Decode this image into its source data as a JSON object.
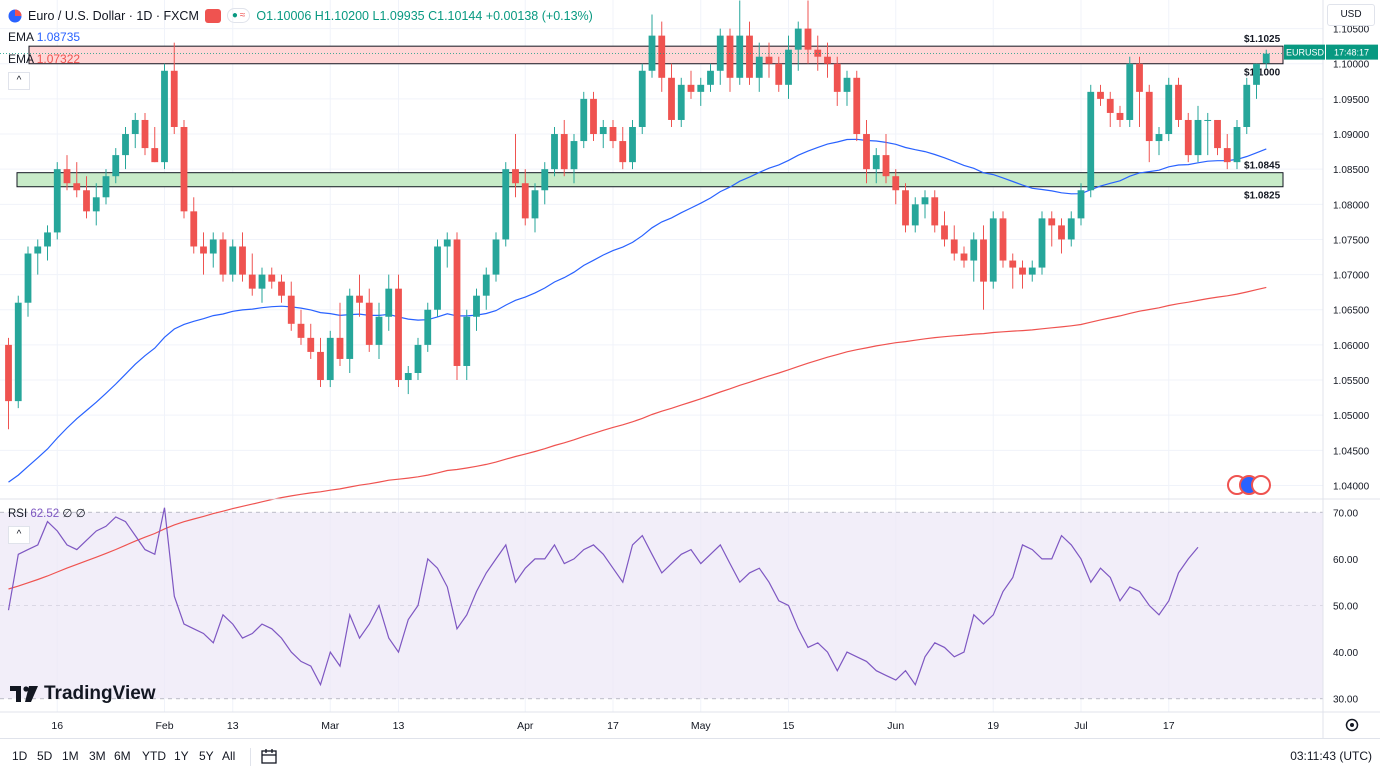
{
  "header": {
    "symbol": "Euro / U.S. Dollar · 1D · FXCM",
    "ohlc": "O1.10006 H1.10200 L1.09935 C1.10144 +0.00138 (+0.13%)"
  },
  "indicators": {
    "ema1": {
      "label": "EMA",
      "value": "1.08735"
    },
    "ema2": {
      "label": "EMA",
      "value": "1.07322"
    },
    "rsi": {
      "label": "RSI",
      "value": "62.52",
      "extra": "∅ ∅"
    }
  },
  "currency_button": "USD",
  "brand": "TradingView",
  "timeframes": [
    "1D",
    "5D",
    "1M",
    "3M",
    "6M",
    "YTD",
    "1Y",
    "5Y",
    "All"
  ],
  "clock": "03:11:43 (UTC)",
  "colors": {
    "up": "#26a69a",
    "down": "#ef5350",
    "ema_fast": "#2962ff",
    "ema_slow": "#ef5350",
    "rsi_line": "#7e57c2",
    "rsi_band": "#ede7f6",
    "resistance_zone": "#ffd6d6",
    "support_zone": "#c8ebc8",
    "current_price": "#089981"
  },
  "icons": [
    "euro-us-flag-icon",
    "calendar-range-icon",
    "settings-gear-icon",
    "economic-events-icon"
  ],
  "chart_data": [
    {
      "type": "candlestick",
      "symbol_label": "EURUSD",
      "current_price": "1.10144",
      "countdown": "17:48:17",
      "y_ticks": [
        "1.10500",
        "1.10000",
        "1.09500",
        "1.09000",
        "1.08500",
        "1.08000",
        "1.07500",
        "1.07000",
        "1.06500",
        "1.06000",
        "1.05500",
        "1.05000",
        "1.04500",
        "1.04000"
      ],
      "y_tick_values": [
        1.105,
        1.1,
        1.095,
        1.09,
        1.085,
        1.08,
        1.075,
        1.07,
        1.065,
        1.06,
        1.055,
        1.05,
        1.045,
        1.04
      ],
      "ylim": [
        1.0385,
        1.1085
      ],
      "x_ticks": [
        {
          "label": "16",
          "i": 5
        },
        {
          "label": "Feb",
          "i": 16
        },
        {
          "label": "13",
          "i": 23
        },
        {
          "label": "Mar",
          "i": 33
        },
        {
          "label": "13",
          "i": 40
        },
        {
          "label": "Apr",
          "i": 53
        },
        {
          "label": "17",
          "i": 62
        },
        {
          "label": "May",
          "i": 71
        },
        {
          "label": "15",
          "i": 80
        },
        {
          "label": "Jun",
          "i": 91
        },
        {
          "label": "19",
          "i": 101
        },
        {
          "label": "Jul",
          "i": 110
        },
        {
          "label": "17",
          "i": 119
        }
      ],
      "zones": [
        {
          "name": "resistance",
          "low": 1.1,
          "high": 1.1025,
          "low_label": "$1.1000",
          "high_label": "$1.1025"
        },
        {
          "name": "support",
          "low": 1.0825,
          "high": 1.0845,
          "low_label": "$1.0825",
          "high_label": "$1.0845"
        }
      ],
      "candles": [
        [
          1.06,
          1.061,
          1.048,
          1.052
        ],
        [
          1.052,
          1.067,
          1.051,
          1.066
        ],
        [
          1.066,
          1.074,
          1.064,
          1.073
        ],
        [
          1.073,
          1.075,
          1.07,
          1.074
        ],
        [
          1.074,
          1.077,
          1.072,
          1.076
        ],
        [
          1.076,
          1.086,
          1.075,
          1.085
        ],
        [
          1.085,
          1.087,
          1.082,
          1.083
        ],
        [
          1.083,
          1.086,
          1.081,
          1.082
        ],
        [
          1.082,
          1.084,
          1.078,
          1.079
        ],
        [
          1.079,
          1.083,
          1.077,
          1.081
        ],
        [
          1.081,
          1.085,
          1.08,
          1.084
        ],
        [
          1.084,
          1.088,
          1.083,
          1.087
        ],
        [
          1.087,
          1.091,
          1.085,
          1.09
        ],
        [
          1.09,
          1.093,
          1.088,
          1.092
        ],
        [
          1.092,
          1.093,
          1.087,
          1.088
        ],
        [
          1.088,
          1.091,
          1.086,
          1.086
        ],
        [
          1.086,
          1.1,
          1.085,
          1.099
        ],
        [
          1.099,
          1.103,
          1.09,
          1.091
        ],
        [
          1.091,
          1.092,
          1.078,
          1.079
        ],
        [
          1.079,
          1.081,
          1.073,
          1.074
        ],
        [
          1.074,
          1.076,
          1.07,
          1.073
        ],
        [
          1.073,
          1.076,
          1.071,
          1.075
        ],
        [
          1.075,
          1.076,
          1.069,
          1.07
        ],
        [
          1.07,
          1.075,
          1.069,
          1.074
        ],
        [
          1.074,
          1.076,
          1.069,
          1.07
        ],
        [
          1.07,
          1.073,
          1.067,
          1.068
        ],
        [
          1.068,
          1.071,
          1.066,
          1.07
        ],
        [
          1.07,
          1.071,
          1.068,
          1.069
        ],
        [
          1.069,
          1.07,
          1.066,
          1.067
        ],
        [
          1.067,
          1.069,
          1.062,
          1.063
        ],
        [
          1.063,
          1.065,
          1.06,
          1.061
        ],
        [
          1.061,
          1.063,
          1.058,
          1.059
        ],
        [
          1.059,
          1.061,
          1.054,
          1.055
        ],
        [
          1.055,
          1.062,
          1.054,
          1.061
        ],
        [
          1.061,
          1.066,
          1.057,
          1.058
        ],
        [
          1.058,
          1.068,
          1.056,
          1.067
        ],
        [
          1.067,
          1.07,
          1.064,
          1.066
        ],
        [
          1.066,
          1.068,
          1.059,
          1.06
        ],
        [
          1.06,
          1.066,
          1.058,
          1.064
        ],
        [
          1.064,
          1.07,
          1.062,
          1.068
        ],
        [
          1.068,
          1.07,
          1.054,
          1.055
        ],
        [
          1.055,
          1.057,
          1.053,
          1.056
        ],
        [
          1.056,
          1.061,
          1.055,
          1.06
        ],
        [
          1.06,
          1.066,
          1.059,
          1.065
        ],
        [
          1.065,
          1.075,
          1.064,
          1.074
        ],
        [
          1.074,
          1.076,
          1.071,
          1.075
        ],
        [
          1.075,
          1.076,
          1.055,
          1.057
        ],
        [
          1.057,
          1.065,
          1.055,
          1.064
        ],
        [
          1.064,
          1.068,
          1.062,
          1.067
        ],
        [
          1.067,
          1.071,
          1.065,
          1.07
        ],
        [
          1.07,
          1.076,
          1.069,
          1.075
        ],
        [
          1.075,
          1.086,
          1.074,
          1.085
        ],
        [
          1.085,
          1.09,
          1.081,
          1.083
        ],
        [
          1.083,
          1.085,
          1.077,
          1.078
        ],
        [
          1.078,
          1.083,
          1.076,
          1.082
        ],
        [
          1.082,
          1.086,
          1.08,
          1.085
        ],
        [
          1.085,
          1.091,
          1.084,
          1.09
        ],
        [
          1.09,
          1.092,
          1.084,
          1.085
        ],
        [
          1.085,
          1.09,
          1.083,
          1.089
        ],
        [
          1.089,
          1.096,
          1.088,
          1.095
        ],
        [
          1.095,
          1.096,
          1.089,
          1.09
        ],
        [
          1.09,
          1.092,
          1.088,
          1.091
        ],
        [
          1.091,
          1.092,
          1.088,
          1.089
        ],
        [
          1.089,
          1.091,
          1.085,
          1.086
        ],
        [
          1.086,
          1.092,
          1.085,
          1.091
        ],
        [
          1.091,
          1.1,
          1.09,
          1.099
        ],
        [
          1.099,
          1.107,
          1.098,
          1.104
        ],
        [
          1.104,
          1.106,
          1.096,
          1.098
        ],
        [
          1.098,
          1.1,
          1.091,
          1.092
        ],
        [
          1.092,
          1.098,
          1.091,
          1.097
        ],
        [
          1.097,
          1.099,
          1.095,
          1.096
        ],
        [
          1.096,
          1.098,
          1.094,
          1.097
        ],
        [
          1.097,
          1.1,
          1.096,
          1.099
        ],
        [
          1.099,
          1.105,
          1.097,
          1.104
        ],
        [
          1.104,
          1.105,
          1.096,
          1.098
        ],
        [
          1.098,
          1.109,
          1.097,
          1.104
        ],
        [
          1.104,
          1.106,
          1.097,
          1.098
        ],
        [
          1.098,
          1.103,
          1.096,
          1.101
        ],
        [
          1.101,
          1.103,
          1.098,
          1.1
        ],
        [
          1.1,
          1.101,
          1.096,
          1.097
        ],
        [
          1.097,
          1.104,
          1.095,
          1.102
        ],
        [
          1.102,
          1.106,
          1.099,
          1.105
        ],
        [
          1.105,
          1.109,
          1.1,
          1.102
        ],
        [
          1.102,
          1.104,
          1.099,
          1.101
        ],
        [
          1.101,
          1.103,
          1.098,
          1.1
        ],
        [
          1.1,
          1.101,
          1.094,
          1.096
        ],
        [
          1.096,
          1.099,
          1.094,
          1.098
        ],
        [
          1.098,
          1.099,
          1.089,
          1.09
        ],
        [
          1.09,
          1.092,
          1.083,
          1.085
        ],
        [
          1.085,
          1.088,
          1.083,
          1.087
        ],
        [
          1.087,
          1.09,
          1.083,
          1.084
        ],
        [
          1.084,
          1.085,
          1.08,
          1.082
        ],
        [
          1.082,
          1.083,
          1.076,
          1.077
        ],
        [
          1.077,
          1.081,
          1.076,
          1.08
        ],
        [
          1.08,
          1.082,
          1.078,
          1.081
        ],
        [
          1.081,
          1.082,
          1.076,
          1.077
        ],
        [
          1.077,
          1.079,
          1.074,
          1.075
        ],
        [
          1.075,
          1.077,
          1.072,
          1.073
        ],
        [
          1.073,
          1.074,
          1.071,
          1.072
        ],
        [
          1.072,
          1.076,
          1.069,
          1.075
        ],
        [
          1.075,
          1.077,
          1.065,
          1.069
        ],
        [
          1.069,
          1.079,
          1.068,
          1.078
        ],
        [
          1.078,
          1.079,
          1.071,
          1.072
        ],
        [
          1.072,
          1.073,
          1.068,
          1.071
        ],
        [
          1.071,
          1.072,
          1.068,
          1.07
        ],
        [
          1.07,
          1.072,
          1.069,
          1.071
        ],
        [
          1.071,
          1.079,
          1.07,
          1.078
        ],
        [
          1.078,
          1.079,
          1.074,
          1.077
        ],
        [
          1.077,
          1.078,
          1.073,
          1.075
        ],
        [
          1.075,
          1.079,
          1.074,
          1.078
        ],
        [
          1.078,
          1.083,
          1.077,
          1.082
        ],
        [
          1.082,
          1.097,
          1.081,
          1.096
        ],
        [
          1.096,
          1.097,
          1.094,
          1.095
        ],
        [
          1.095,
          1.096,
          1.091,
          1.093
        ],
        [
          1.093,
          1.094,
          1.091,
          1.092
        ],
        [
          1.092,
          1.101,
          1.091,
          1.1
        ],
        [
          1.1,
          1.101,
          1.091,
          1.096
        ],
        [
          1.096,
          1.097,
          1.086,
          1.089
        ],
        [
          1.089,
          1.091,
          1.087,
          1.09
        ],
        [
          1.09,
          1.098,
          1.089,
          1.097
        ],
        [
          1.097,
          1.098,
          1.091,
          1.092
        ],
        [
          1.092,
          1.093,
          1.086,
          1.087
        ],
        [
          1.087,
          1.094,
          1.086,
          1.092
        ],
        [
          1.092,
          1.093,
          1.087,
          1.092
        ],
        [
          1.092,
          1.092,
          1.087,
          1.088
        ],
        [
          1.088,
          1.09,
          1.085,
          1.086
        ],
        [
          1.086,
          1.092,
          1.085,
          1.091
        ],
        [
          1.091,
          1.098,
          1.09,
          1.097
        ],
        [
          1.097,
          1.1,
          1.095,
          1.1
        ],
        [
          1.10006,
          1.102,
          1.09935,
          1.10144
        ]
      ]
    },
    {
      "type": "line",
      "name": "RSI",
      "y_ticks": [
        "70.00",
        "60.00",
        "50.00",
        "40.00",
        "30.00"
      ],
      "y_tick_values": [
        70,
        60,
        50,
        40,
        30
      ],
      "ylim": [
        28,
        72
      ],
      "band": [
        30,
        70
      ],
      "midline": 50,
      "values": [
        49,
        61,
        62,
        63,
        68,
        66,
        63,
        62,
        64,
        66,
        67,
        69,
        68,
        65,
        62,
        61,
        71,
        52,
        46,
        45,
        44,
        42,
        48,
        46,
        43,
        44,
        46,
        45,
        43,
        40,
        38,
        37,
        33,
        40,
        37,
        48,
        43,
        46,
        50,
        43,
        40,
        47,
        50,
        60,
        58,
        54,
        45,
        48,
        53,
        57,
        60,
        63,
        55,
        58,
        60,
        60,
        63,
        59,
        60,
        62,
        63,
        61,
        58,
        55,
        63,
        65,
        61,
        57,
        59,
        61,
        62,
        59,
        61,
        63,
        59,
        55,
        57,
        58,
        55,
        51,
        50,
        45,
        41,
        42,
        40,
        36,
        40,
        39,
        38,
        36,
        35,
        34,
        36,
        33,
        39,
        42,
        41,
        39,
        40,
        48,
        46,
        48,
        53,
        56,
        63,
        62,
        60,
        60,
        65,
        63,
        60,
        55,
        58,
        56,
        51,
        54,
        53,
        50,
        48,
        51,
        57,
        60,
        62.52
      ]
    }
  ]
}
